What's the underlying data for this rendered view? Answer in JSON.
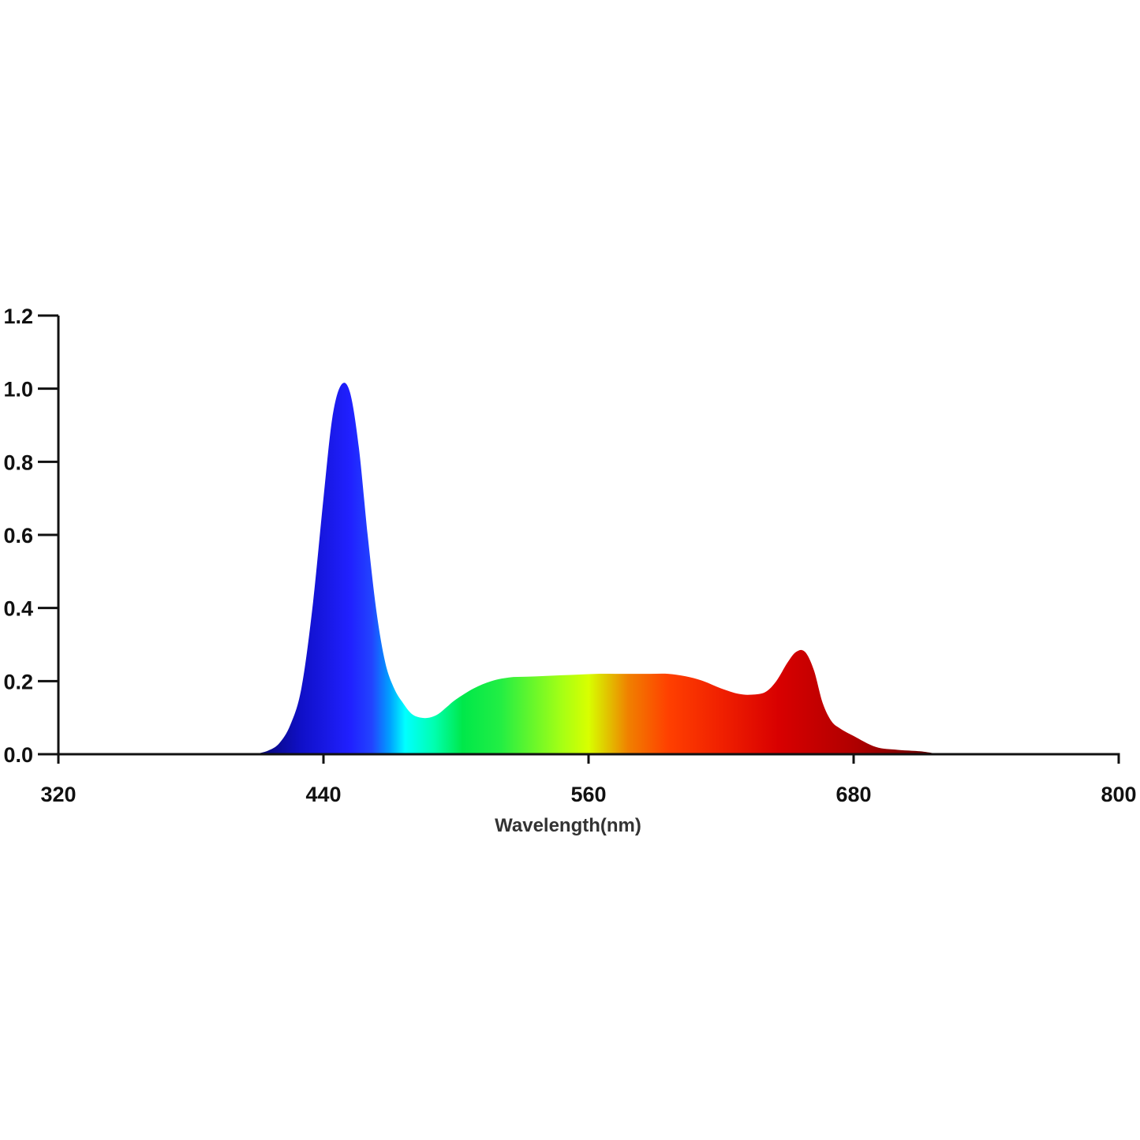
{
  "chart_data": {
    "type": "area",
    "title": "",
    "xlabel": "Wavelength(nm)",
    "ylabel": "",
    "xlim": [
      320,
      800
    ],
    "ylim": [
      0,
      1.2
    ],
    "x_ticks": [
      "320",
      "440",
      "560",
      "680",
      "800"
    ],
    "y_ticks": [
      "0.0",
      "0.2",
      "0.4",
      "0.6",
      "0.8",
      "1.0",
      "1.2"
    ],
    "grid": false,
    "legend": "none",
    "fill": "spectral gradient",
    "series": [
      {
        "x": [
          409,
          415,
          420,
          425,
          430,
          435,
          440,
          444,
          448,
          452,
          456,
          460,
          464,
          468,
          472,
          476,
          480,
          484,
          488,
          492,
          496,
          500,
          508,
          516,
          524,
          532,
          540,
          548,
          556,
          564,
          572,
          580,
          588,
          596,
          604,
          612,
          620,
          628,
          634,
          640,
          645,
          650,
          654,
          658,
          662,
          666,
          670,
          674,
          680,
          690,
          700,
          710,
          716,
          720
        ],
        "y": [
          0.0,
          0.01,
          0.03,
          0.08,
          0.18,
          0.4,
          0.7,
          0.92,
          1.01,
          0.99,
          0.84,
          0.6,
          0.39,
          0.25,
          0.18,
          0.14,
          0.11,
          0.1,
          0.1,
          0.11,
          0.13,
          0.15,
          0.18,
          0.2,
          0.21,
          0.212,
          0.214,
          0.216,
          0.218,
          0.22,
          0.22,
          0.22,
          0.22,
          0.22,
          0.213,
          0.2,
          0.18,
          0.165,
          0.163,
          0.17,
          0.2,
          0.25,
          0.28,
          0.28,
          0.23,
          0.14,
          0.09,
          0.07,
          0.05,
          0.02,
          0.012,
          0.008,
          0.003,
          0.0
        ]
      }
    ],
    "gradient_stops": [
      {
        "x": 409,
        "color": "#05056b"
      },
      {
        "x": 430,
        "color": "#1010c8"
      },
      {
        "x": 452,
        "color": "#2020ff"
      },
      {
        "x": 462,
        "color": "#2244ff"
      },
      {
        "x": 470,
        "color": "#00a0ff"
      },
      {
        "x": 477,
        "color": "#00ffff"
      },
      {
        "x": 490,
        "color": "#00ffb0"
      },
      {
        "x": 503,
        "color": "#00e84a"
      },
      {
        "x": 520,
        "color": "#22ee44"
      },
      {
        "x": 548,
        "color": "#a6ff14"
      },
      {
        "x": 560,
        "color": "#d8ff00"
      },
      {
        "x": 568,
        "color": "#e0c800"
      },
      {
        "x": 578,
        "color": "#f08000"
      },
      {
        "x": 596,
        "color": "#ff4000"
      },
      {
        "x": 620,
        "color": "#f02000"
      },
      {
        "x": 646,
        "color": "#d80000"
      },
      {
        "x": 680,
        "color": "#b00000"
      },
      {
        "x": 700,
        "color": "#8a0000"
      },
      {
        "x": 720,
        "color": "#500000"
      }
    ]
  }
}
